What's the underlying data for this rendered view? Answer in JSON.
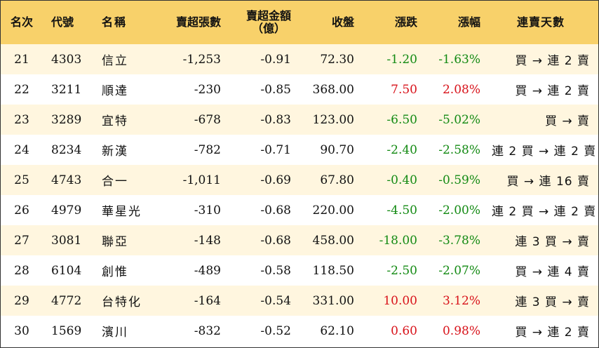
{
  "headers": {
    "rank": "名次",
    "code": "代號",
    "name": "名稱",
    "shares": "賣超張數",
    "amount_line1": "賣超金額",
    "amount_line2": "（億）",
    "close": "收盤",
    "change": "漲跌",
    "pct": "漲幅",
    "streak": "連賣天數"
  },
  "colors": {
    "header_bg": "#f8d16a",
    "odd_row_bg": "#fff6df",
    "up": "#d8121a",
    "down": "#138a13"
  },
  "rows": [
    {
      "rank": "21",
      "code": "4303",
      "name": "信立",
      "shares": "-1,253",
      "amount": "-0.91",
      "close": "72.30",
      "change": "-1.20",
      "pct": "-1.63%",
      "direction": "down",
      "streak": "買 → 連 2 賣"
    },
    {
      "rank": "22",
      "code": "3211",
      "name": "順達",
      "shares": "-230",
      "amount": "-0.85",
      "close": "368.00",
      "change": "7.50",
      "pct": "2.08%",
      "direction": "up",
      "streak": "買 → 連 2 賣"
    },
    {
      "rank": "23",
      "code": "3289",
      "name": "宜特",
      "shares": "-678",
      "amount": "-0.83",
      "close": "123.00",
      "change": "-6.50",
      "pct": "-5.02%",
      "direction": "down",
      "streak": "買 → 賣"
    },
    {
      "rank": "24",
      "code": "8234",
      "name": "新漢",
      "shares": "-782",
      "amount": "-0.71",
      "close": "90.70",
      "change": "-2.40",
      "pct": "-2.58%",
      "direction": "down",
      "streak": "連 2 買 → 連 2 賣"
    },
    {
      "rank": "25",
      "code": "4743",
      "name": "合一",
      "shares": "-1,011",
      "amount": "-0.69",
      "close": "67.80",
      "change": "-0.40",
      "pct": "-0.59%",
      "direction": "down",
      "streak": "買 → 連 16 賣"
    },
    {
      "rank": "26",
      "code": "4979",
      "name": "華星光",
      "shares": "-310",
      "amount": "-0.68",
      "close": "220.00",
      "change": "-4.50",
      "pct": "-2.00%",
      "direction": "down",
      "streak": "連 2 買 → 連 2 賣"
    },
    {
      "rank": "27",
      "code": "3081",
      "name": "聯亞",
      "shares": "-148",
      "amount": "-0.68",
      "close": "458.00",
      "change": "-18.00",
      "pct": "-3.78%",
      "direction": "down",
      "streak": "連 3 買 → 賣"
    },
    {
      "rank": "28",
      "code": "6104",
      "name": "創惟",
      "shares": "-489",
      "amount": "-0.58",
      "close": "118.50",
      "change": "-2.50",
      "pct": "-2.07%",
      "direction": "down",
      "streak": "買 → 連 4 賣"
    },
    {
      "rank": "29",
      "code": "4772",
      "name": "台特化",
      "shares": "-164",
      "amount": "-0.54",
      "close": "331.00",
      "change": "10.00",
      "pct": "3.12%",
      "direction": "up",
      "streak": "連 3 買 → 賣"
    },
    {
      "rank": "30",
      "code": "1569",
      "name": "濱川",
      "shares": "-832",
      "amount": "-0.52",
      "close": "62.10",
      "change": "0.60",
      "pct": "0.98%",
      "direction": "up",
      "streak": "買 → 連 2 賣"
    }
  ]
}
